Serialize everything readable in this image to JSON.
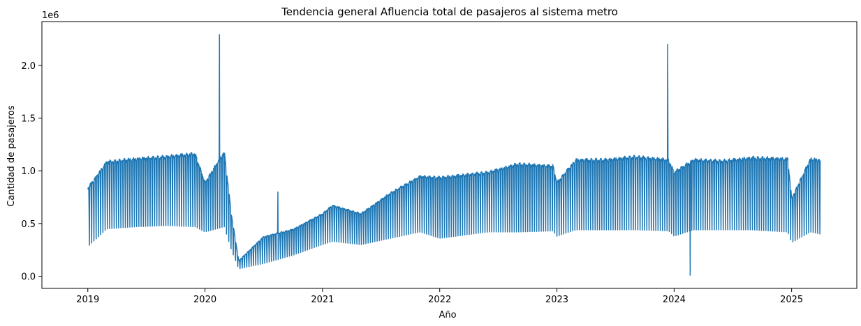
{
  "chart_data": {
    "type": "line",
    "title": "Tendencia general Afluencia total de pasajeros al sistema metro",
    "xlabel": "Año",
    "ylabel": "Cantidad de pasajeros",
    "y_offset_label": "1e6",
    "x_tick_labels": [
      "2019",
      "2020",
      "2021",
      "2022",
      "2023",
      "2024",
      "2025"
    ],
    "y_tick_labels": [
      "0.0",
      "0.5",
      "1.0",
      "1.5",
      "2.0"
    ],
    "y_tick_values": [
      0,
      500000,
      1000000,
      1500000,
      2000000
    ],
    "xlim": [
      "2018-08-11",
      "2025-07-23"
    ],
    "ylim": [
      -115000,
      2415000
    ],
    "grid": false,
    "legend": "none",
    "color": "#1f77b4",
    "series": [
      {
        "x_start": "2019-01-01",
        "x_end": "2025-03-31",
        "weekly_pattern": "weekday peaks with weekend troughs",
        "envelope": [
          {
            "date": "2019-01-01",
            "high": 850000,
            "low": 280000
          },
          {
            "date": "2019-03-01",
            "high": 1100000,
            "low": 450000
          },
          {
            "date": "2019-06-01",
            "high": 1130000,
            "low": 470000
          },
          {
            "date": "2019-09-01",
            "high": 1150000,
            "low": 480000
          },
          {
            "date": "2019-12-01",
            "high": 1180000,
            "low": 470000
          },
          {
            "date": "2020-01-01",
            "high": 900000,
            "low": 420000
          },
          {
            "date": "2020-03-01",
            "high": 1200000,
            "low": 470000
          },
          {
            "date": "2020-03-23",
            "high": 600000,
            "low": 250000
          },
          {
            "date": "2020-04-15",
            "high": 150000,
            "low": 70000
          },
          {
            "date": "2020-07-01",
            "high": 380000,
            "low": 120000
          },
          {
            "date": "2020-10-01",
            "high": 450000,
            "low": 200000
          },
          {
            "date": "2021-01-01",
            "high": 600000,
            "low": 300000
          },
          {
            "date": "2021-02-01",
            "high": 680000,
            "low": 330000
          },
          {
            "date": "2021-05-01",
            "high": 600000,
            "low": 300000
          },
          {
            "date": "2021-08-01",
            "high": 800000,
            "low": 360000
          },
          {
            "date": "2021-11-01",
            "high": 960000,
            "low": 420000
          },
          {
            "date": "2022-01-01",
            "high": 950000,
            "low": 360000
          },
          {
            "date": "2022-06-01",
            "high": 1000000,
            "low": 420000
          },
          {
            "date": "2022-09-01",
            "high": 1080000,
            "low": 420000
          },
          {
            "date": "2022-12-20",
            "high": 1060000,
            "low": 430000
          },
          {
            "date": "2023-01-01",
            "high": 900000,
            "low": 380000
          },
          {
            "date": "2023-03-01",
            "high": 1120000,
            "low": 440000
          },
          {
            "date": "2023-06-01",
            "high": 1120000,
            "low": 440000
          },
          {
            "date": "2023-09-01",
            "high": 1150000,
            "low": 440000
          },
          {
            "date": "2023-12-15",
            "high": 1120000,
            "low": 430000
          },
          {
            "date": "2024-01-01",
            "high": 1000000,
            "low": 380000
          },
          {
            "date": "2024-03-01",
            "high": 1120000,
            "low": 440000
          },
          {
            "date": "2024-06-01",
            "high": 1110000,
            "low": 440000
          },
          {
            "date": "2024-09-01",
            "high": 1140000,
            "low": 440000
          },
          {
            "date": "2024-12-20",
            "high": 1130000,
            "low": 420000
          },
          {
            "date": "2025-01-01",
            "high": 750000,
            "low": 320000
          },
          {
            "date": "2025-03-01",
            "high": 1130000,
            "low": 420000
          },
          {
            "date": "2025-03-31",
            "high": 1120000,
            "low": 400000
          }
        ],
        "spikes": [
          {
            "date": "2020-02-15",
            "value": 2290000
          },
          {
            "date": "2020-08-15",
            "value": 800000
          },
          {
            "date": "2023-12-12",
            "value": 2200000
          },
          {
            "date": "2024-02-20",
            "value": 10000
          }
        ]
      }
    ]
  }
}
